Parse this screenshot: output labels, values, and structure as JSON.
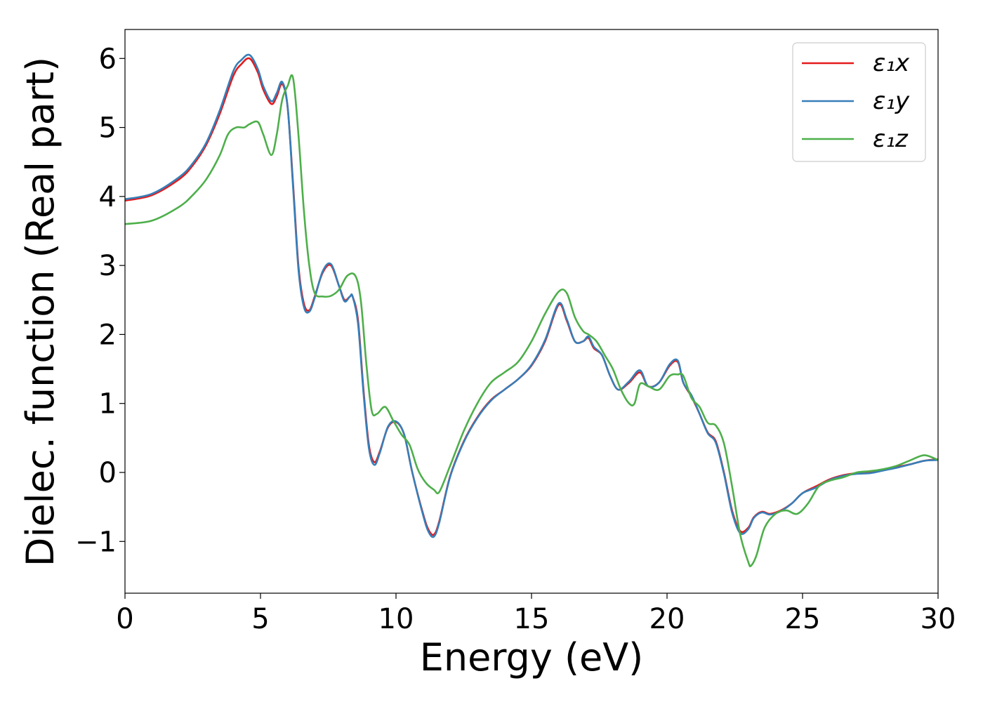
{
  "chart_data": {
    "type": "line",
    "title": "",
    "xlabel": "Energy (eV)",
    "ylabel": "Dielec. function (Real part)",
    "xlim": [
      0,
      30
    ],
    "ylim": [
      -1.75,
      6.42
    ],
    "xticks": [
      0,
      5,
      10,
      15,
      20,
      25,
      30
    ],
    "xtick_labels": [
      "0",
      "5",
      "10",
      "15",
      "20",
      "25",
      "30"
    ],
    "yticks": [
      -1,
      0,
      1,
      2,
      3,
      4,
      5,
      6
    ],
    "ytick_labels": [
      "−1",
      "0",
      "1",
      "2",
      "3",
      "4",
      "5",
      "6"
    ],
    "grid": false,
    "legend_position": "top-right",
    "series": [
      {
        "name": "ε₁x",
        "color": "#e41a1c",
        "x": [
          0,
          1,
          2,
          2.5,
          3,
          3.5,
          4,
          4.3,
          4.6,
          4.9,
          5.1,
          5.4,
          5.6,
          5.8,
          6.0,
          6.2,
          6.4,
          6.6,
          6.8,
          7.0,
          7.3,
          7.6,
          7.9,
          8.1,
          8.3,
          8.4,
          8.6,
          8.8,
          9.0,
          9.2,
          9.4,
          9.7,
          10.0,
          10.3,
          10.6,
          11.0,
          11.2,
          11.4,
          11.6,
          12.0,
          12.5,
          13.0,
          13.5,
          14.0,
          14.5,
          15.0,
          15.5,
          16.0,
          16.3,
          16.6,
          16.9,
          17.1,
          17.3,
          17.6,
          17.9,
          18.2,
          18.6,
          19.0,
          19.3,
          19.7,
          20.1,
          20.4,
          20.6,
          20.9,
          21.2,
          21.5,
          21.8,
          22.1,
          22.4,
          22.7,
          23.0,
          23.2,
          23.5,
          23.8,
          24.2,
          24.6,
          25.0,
          25.5,
          26.0,
          26.5,
          27.0,
          27.5,
          28.0,
          28.5,
          29.0,
          29.5,
          30.0
        ],
        "values": [
          3.94,
          4.02,
          4.25,
          4.45,
          4.75,
          5.2,
          5.75,
          5.92,
          6.0,
          5.8,
          5.55,
          5.34,
          5.45,
          5.63,
          5.3,
          4.2,
          3.0,
          2.45,
          2.35,
          2.55,
          2.9,
          3.0,
          2.7,
          2.5,
          2.55,
          2.55,
          2.2,
          1.2,
          0.4,
          0.15,
          0.3,
          0.65,
          0.73,
          0.55,
          0.0,
          -0.6,
          -0.83,
          -0.9,
          -0.7,
          -0.05,
          0.45,
          0.8,
          1.05,
          1.2,
          1.35,
          1.55,
          1.9,
          2.43,
          2.2,
          1.9,
          1.9,
          1.95,
          1.8,
          1.7,
          1.4,
          1.2,
          1.3,
          1.45,
          1.25,
          1.3,
          1.55,
          1.6,
          1.3,
          1.1,
          0.85,
          0.58,
          0.45,
          0.0,
          -0.55,
          -0.85,
          -0.8,
          -0.65,
          -0.57,
          -0.6,
          -0.55,
          -0.45,
          -0.3,
          -0.2,
          -0.1,
          -0.04,
          -0.01,
          0.0,
          0.04,
          0.08,
          0.12,
          0.17,
          0.19
        ]
      },
      {
        "name": "ε₁y",
        "color": "#377eb8",
        "x": [
          0,
          1,
          2,
          2.5,
          3,
          3.5,
          4,
          4.3,
          4.6,
          4.9,
          5.1,
          5.4,
          5.6,
          5.8,
          6.0,
          6.2,
          6.4,
          6.6,
          6.8,
          7.0,
          7.3,
          7.6,
          7.9,
          8.1,
          8.3,
          8.4,
          8.6,
          8.8,
          9.0,
          9.2,
          9.4,
          9.7,
          10.0,
          10.3,
          10.6,
          11.0,
          11.2,
          11.4,
          11.6,
          12.0,
          12.5,
          13.0,
          13.5,
          14.0,
          14.5,
          15.0,
          15.5,
          16.0,
          16.3,
          16.6,
          16.9,
          17.1,
          17.3,
          17.6,
          17.9,
          18.2,
          18.6,
          19.0,
          19.3,
          19.7,
          20.1,
          20.4,
          20.6,
          20.9,
          21.2,
          21.5,
          21.8,
          22.1,
          22.4,
          22.7,
          23.0,
          23.2,
          23.5,
          23.8,
          24.2,
          24.6,
          25.0,
          25.5,
          26.0,
          26.5,
          27.0,
          27.5,
          28.0,
          28.5,
          29.0,
          29.5,
          30.0
        ],
        "values": [
          3.96,
          4.04,
          4.28,
          4.48,
          4.78,
          5.25,
          5.82,
          5.98,
          6.05,
          5.85,
          5.6,
          5.38,
          5.5,
          5.66,
          5.3,
          4.15,
          2.95,
          2.4,
          2.33,
          2.53,
          2.92,
          3.02,
          2.7,
          2.48,
          2.55,
          2.55,
          2.15,
          1.15,
          0.35,
          0.11,
          0.28,
          0.66,
          0.74,
          0.55,
          0.0,
          -0.62,
          -0.86,
          -0.93,
          -0.72,
          -0.06,
          0.44,
          0.79,
          1.04,
          1.2,
          1.35,
          1.56,
          1.92,
          2.45,
          2.22,
          1.9,
          1.9,
          1.97,
          1.82,
          1.7,
          1.4,
          1.2,
          1.32,
          1.48,
          1.25,
          1.3,
          1.57,
          1.62,
          1.3,
          1.12,
          0.85,
          0.57,
          0.43,
          -0.02,
          -0.58,
          -0.88,
          -0.82,
          -0.66,
          -0.58,
          -0.61,
          -0.56,
          -0.45,
          -0.3,
          -0.22,
          -0.11,
          -0.05,
          -0.02,
          -0.01,
          0.03,
          0.07,
          0.12,
          0.17,
          0.18
        ]
      },
      {
        "name": "ε₁z",
        "color": "#4daf4a",
        "x": [
          0,
          1,
          2,
          2.5,
          3,
          3.5,
          3.8,
          4.1,
          4.4,
          4.6,
          4.9,
          5.1,
          5.4,
          5.6,
          5.8,
          6.0,
          6.2,
          6.4,
          6.6,
          6.8,
          7.0,
          7.3,
          7.6,
          7.9,
          8.2,
          8.5,
          8.7,
          8.9,
          9.1,
          9.3,
          9.6,
          9.9,
          10.2,
          10.5,
          10.8,
          11.1,
          11.4,
          11.6,
          12.0,
          12.5,
          13.0,
          13.5,
          14.0,
          14.5,
          15.0,
          15.5,
          16.0,
          16.3,
          16.6,
          16.9,
          17.1,
          17.4,
          17.7,
          18.0,
          18.3,
          18.6,
          18.8,
          19.0,
          19.3,
          19.7,
          20.1,
          20.4,
          20.6,
          20.9,
          21.2,
          21.5,
          21.8,
          22.1,
          22.4,
          22.7,
          23.0,
          23.1,
          23.3,
          23.6,
          24.0,
          24.4,
          24.8,
          25.2,
          25.6,
          26.0,
          26.5,
          27.0,
          27.5,
          28.0,
          28.5,
          29.0,
          29.5,
          30.0
        ],
        "values": [
          3.6,
          3.65,
          3.85,
          4.02,
          4.25,
          4.6,
          4.9,
          5.0,
          5.0,
          5.05,
          5.08,
          4.9,
          4.6,
          4.9,
          5.4,
          5.6,
          5.72,
          4.9,
          3.8,
          3.0,
          2.6,
          2.55,
          2.56,
          2.65,
          2.85,
          2.85,
          2.5,
          1.6,
          0.9,
          0.85,
          0.95,
          0.75,
          0.55,
          0.4,
          0.05,
          -0.15,
          -0.25,
          -0.28,
          0.1,
          0.6,
          1.0,
          1.3,
          1.45,
          1.6,
          1.9,
          2.3,
          2.62,
          2.6,
          2.25,
          2.05,
          2.0,
          1.9,
          1.7,
          1.5,
          1.2,
          1.0,
          1.0,
          1.28,
          1.25,
          1.2,
          1.4,
          1.42,
          1.4,
          1.08,
          0.95,
          0.72,
          0.68,
          0.42,
          -0.2,
          -0.9,
          -1.3,
          -1.35,
          -1.2,
          -0.8,
          -0.6,
          -0.55,
          -0.6,
          -0.45,
          -0.2,
          -0.12,
          -0.07,
          0.0,
          0.02,
          0.05,
          0.1,
          0.18,
          0.25,
          0.18
        ]
      }
    ]
  }
}
